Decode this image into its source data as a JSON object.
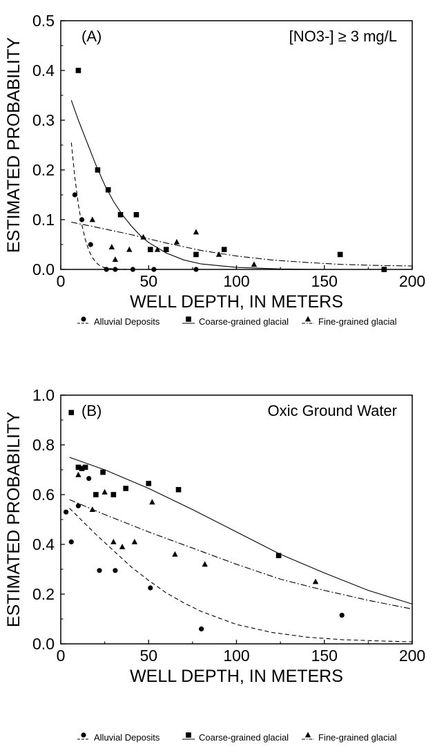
{
  "chart_data": [
    {
      "type": "scatter",
      "panel_label": "(A)",
      "annotation": "[NO3-] ≥ 3 mg/L",
      "xlabel": "WELL DEPTH, IN METERS",
      "ylabel": "ESTIMATED PROBABILITY",
      "xlim": [
        0,
        200
      ],
      "ylim": [
        0,
        0.5
      ],
      "xticks": [
        "0",
        "50",
        "100",
        "150",
        "200"
      ],
      "yticks": [
        "0.0",
        "0.1",
        "0.2",
        "0.3",
        "0.4",
        "0.5"
      ],
      "grid": false,
      "series": [
        {
          "name": "Alluvial Deposits",
          "marker": "circle",
          "line": "dashed",
          "points": [
            [
              8,
              0.15
            ],
            [
              12,
              0.1
            ],
            [
              17,
              0.05
            ],
            [
              26,
              0.0
            ],
            [
              31,
              0.0
            ],
            [
              41,
              0.0
            ],
            [
              53,
              0.0
            ],
            [
              77,
              0.0
            ],
            [
              184,
              0.0
            ]
          ],
          "curve": [
            [
              6,
              0.255
            ],
            [
              8,
              0.185
            ],
            [
              10,
              0.13
            ],
            [
              12,
              0.09
            ],
            [
              14,
              0.06
            ],
            [
              16,
              0.038
            ],
            [
              18,
              0.024
            ],
            [
              20,
              0.014
            ],
            [
              22,
              0.008
            ],
            [
              25,
              0.003
            ],
            [
              30,
              0.001
            ],
            [
              40,
              0.0
            ],
            [
              60,
              0.0
            ],
            [
              100,
              0.0
            ],
            [
              150,
              0.0
            ],
            [
              200,
              0.0
            ]
          ]
        },
        {
          "name": "Coarse-grained glacial",
          "marker": "square",
          "line": "solid",
          "points": [
            [
              10,
              0.4
            ],
            [
              21,
              0.2
            ],
            [
              27,
              0.16
            ],
            [
              34,
              0.11
            ],
            [
              43,
              0.11
            ],
            [
              51,
              0.04
            ],
            [
              60,
              0.04
            ],
            [
              77,
              0.03
            ],
            [
              93,
              0.04
            ],
            [
              159,
              0.03
            ],
            [
              184,
              0.0
            ]
          ],
          "curve": [
            [
              6,
              0.34
            ],
            [
              10,
              0.3
            ],
            [
              15,
              0.255
            ],
            [
              20,
              0.21
            ],
            [
              25,
              0.17
            ],
            [
              30,
              0.137
            ],
            [
              35,
              0.11
            ],
            [
              40,
              0.088
            ],
            [
              45,
              0.069
            ],
            [
              50,
              0.054
            ],
            [
              60,
              0.033
            ],
            [
              70,
              0.019
            ],
            [
              80,
              0.011
            ],
            [
              100,
              0.004
            ],
            [
              125,
              0.001
            ],
            [
              150,
              0.0
            ],
            [
              200,
              0.0
            ]
          ]
        },
        {
          "name": "Fine-grained glacial",
          "marker": "triangle",
          "line": "dash-dot",
          "points": [
            [
              18,
              0.1
            ],
            [
              29,
              0.045
            ],
            [
              31,
              0.02
            ],
            [
              39,
              0.04
            ],
            [
              47,
              0.065
            ],
            [
              55,
              0.04
            ],
            [
              66,
              0.055
            ],
            [
              77,
              0.075
            ],
            [
              90,
              0.03
            ],
            [
              110,
              0.01
            ]
          ],
          "curve": [
            [
              6,
              0.095
            ],
            [
              20,
              0.085
            ],
            [
              40,
              0.07
            ],
            [
              60,
              0.053
            ],
            [
              80,
              0.038
            ],
            [
              100,
              0.027
            ],
            [
              120,
              0.019
            ],
            [
              140,
              0.014
            ],
            [
              160,
              0.01
            ],
            [
              180,
              0.008
            ],
            [
              200,
              0.007
            ]
          ]
        }
      ]
    },
    {
      "type": "scatter",
      "panel_label": "(B)",
      "annotation": "Oxic Ground Water",
      "xlabel": "WELL DEPTH, IN METERS",
      "ylabel": "ESTIMATED PROBABILITY",
      "xlim": [
        0,
        200
      ],
      "ylim": [
        0,
        1.0
      ],
      "xticks": [
        "0",
        "50",
        "100",
        "150",
        "200"
      ],
      "yticks": [
        "0.0",
        "0.2",
        "0.4",
        "0.6",
        "0.8",
        "1.0"
      ],
      "grid": false,
      "series": [
        {
          "name": "Alluvial Deposits",
          "marker": "circle",
          "line": "dashed",
          "points": [
            [
              3,
              0.53
            ],
            [
              6,
              0.41
            ],
            [
              10,
              0.555
            ],
            [
              16,
              0.665
            ],
            [
              22,
              0.295
            ],
            [
              31,
              0.295
            ],
            [
              51,
              0.225
            ],
            [
              80,
              0.06
            ],
            [
              160,
              0.115
            ]
          ],
          "curve": [
            [
              5,
              0.545
            ],
            [
              10,
              0.51
            ],
            [
              20,
              0.44
            ],
            [
              30,
              0.375
            ],
            [
              40,
              0.31
            ],
            [
              50,
              0.255
            ],
            [
              60,
              0.205
            ],
            [
              70,
              0.165
            ],
            [
              80,
              0.13
            ],
            [
              100,
              0.078
            ],
            [
              120,
              0.046
            ],
            [
              140,
              0.027
            ],
            [
              160,
              0.017
            ],
            [
              180,
              0.012
            ],
            [
              200,
              0.008
            ]
          ]
        },
        {
          "name": "Coarse-grained glacial",
          "marker": "square",
          "line": "solid",
          "points": [
            [
              6,
              0.93
            ],
            [
              10,
              0.71
            ],
            [
              12,
              0.705
            ],
            [
              14,
              0.71
            ],
            [
              20,
              0.6
            ],
            [
              24,
              0.69
            ],
            [
              30,
              0.6
            ],
            [
              37,
              0.625
            ],
            [
              50,
              0.645
            ],
            [
              67,
              0.62
            ],
            [
              124,
              0.355
            ]
          ],
          "curve": [
            [
              5,
              0.75
            ],
            [
              25,
              0.7
            ],
            [
              50,
              0.625
            ],
            [
              75,
              0.54
            ],
            [
              100,
              0.45
            ],
            [
              125,
              0.36
            ],
            [
              150,
              0.285
            ],
            [
              175,
              0.215
            ],
            [
              200,
              0.16
            ]
          ]
        },
        {
          "name": "Fine-grained glacial",
          "marker": "triangle",
          "line": "dash-dot",
          "points": [
            [
              10,
              0.68
            ],
            [
              18,
              0.54
            ],
            [
              25,
              0.61
            ],
            [
              30,
              0.41
            ],
            [
              35,
              0.39
            ],
            [
              42,
              0.41
            ],
            [
              52,
              0.57
            ],
            [
              65,
              0.36
            ],
            [
              82,
              0.32
            ],
            [
              145,
              0.25
            ]
          ],
          "curve": [
            [
              5,
              0.58
            ],
            [
              25,
              0.52
            ],
            [
              50,
              0.45
            ],
            [
              75,
              0.385
            ],
            [
              100,
              0.32
            ],
            [
              125,
              0.26
            ],
            [
              150,
              0.215
            ],
            [
              175,
              0.175
            ],
            [
              200,
              0.14
            ]
          ]
        }
      ]
    }
  ]
}
